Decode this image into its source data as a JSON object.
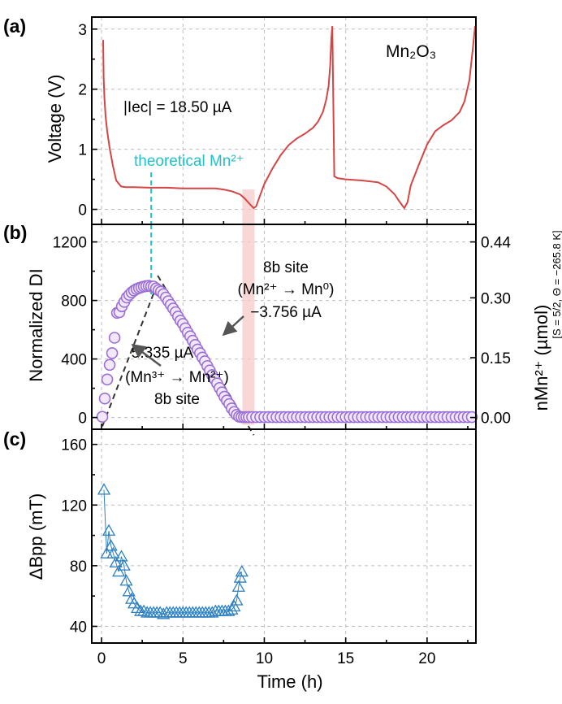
{
  "colors": {
    "voltage_line": "#d64545",
    "di_marker": "#9b6fd6",
    "di_marker_fill": "#f1e9fb",
    "dbpp_marker": "#2d7fc1",
    "theoretical_line": "#1fc3c9",
    "band": "#f7c9c9",
    "fit_line": "#333333",
    "arrow": "#555555"
  },
  "chart_data": [
    {
      "panel_label": "(a)",
      "type": "line",
      "ylabel": "Voltage (V)",
      "ylim": [
        -0.25,
        3.2
      ],
      "yticks": [
        "0",
        "1",
        "2",
        "3"
      ],
      "xlim": [
        -0.6,
        23
      ],
      "grid": true,
      "compound": "Mn₂O₃",
      "current_label": "|Iec| = 18.50 µA",
      "theoretical_label": "theoretical Mn²⁺",
      "theoretical_x": 3.05,
      "band_x": [
        8.65,
        9.4
      ],
      "series": [
        {
          "x": [
            0.1,
            0.13,
            0.18,
            0.25,
            0.35,
            0.5,
            0.7,
            0.9,
            1.2,
            1.5,
            2,
            3,
            4,
            5,
            6,
            7,
            7.5,
            8,
            8.5,
            8.8,
            9.0,
            9.2,
            9.35,
            9.5,
            9.7,
            10,
            10.5,
            11,
            11.5,
            12,
            12.5,
            13,
            13.3,
            13.6,
            13.8,
            13.95,
            14.05,
            14.12,
            14.18,
            14.22,
            14.3,
            14.5,
            15,
            16,
            17,
            17.5,
            18,
            18.3,
            18.6,
            18.8,
            19,
            19.5,
            20,
            20.5,
            21,
            21.5,
            22,
            22.3,
            22.6,
            22.8,
            22.95
          ],
          "y": [
            2.82,
            2.2,
            1.85,
            1.55,
            1.3,
            1.02,
            0.72,
            0.48,
            0.38,
            0.37,
            0.37,
            0.36,
            0.36,
            0.35,
            0.35,
            0.35,
            0.33,
            0.3,
            0.25,
            0.18,
            0.12,
            0.06,
            0.02,
            0.05,
            0.2,
            0.42,
            0.68,
            0.9,
            1.07,
            1.18,
            1.26,
            1.36,
            1.46,
            1.62,
            1.82,
            2.05,
            2.4,
            2.85,
            3.05,
            2.2,
            0.55,
            0.52,
            0.5,
            0.48,
            0.45,
            0.38,
            0.25,
            0.13,
            0.02,
            0.12,
            0.4,
            0.75,
            1.08,
            1.3,
            1.4,
            1.48,
            1.62,
            1.8,
            2.15,
            2.65,
            3.05
          ]
        }
      ]
    },
    {
      "panel_label": "(b)",
      "type": "scatter",
      "ylabel": "Normalized DI",
      "ylim": [
        -80,
        1320
      ],
      "yticks": [
        "0",
        "400",
        "800",
        "1200"
      ],
      "y2label": "nMn²⁺ (µmol)",
      "y2label_sub": "[S = 5/2, Θ = −265.8 K]",
      "y2ticks": [
        "0.00",
        "0.15",
        "0.30",
        "0.44"
      ],
      "y2tick_positions": [
        0,
        409,
        818,
        1200
      ],
      "xlim": [
        -0.6,
        23
      ],
      "grid": true,
      "annotations": {
        "up_rate": "5.335 µA",
        "up_reaction": "(Mn³⁺ → Mn²⁺)",
        "up_site": "8b site",
        "down_site": "8b site",
        "down_reaction": "(Mn²⁺ → Mn⁰)",
        "down_rate": "−3.756 µA"
      },
      "fit_lines": [
        {
          "x": [
            0.05,
            3.45
          ],
          "y": [
            -60,
            920
          ]
        },
        {
          "x": [
            3.45,
            9.35
          ],
          "y": [
            970,
            -120
          ]
        }
      ],
      "x": [
        0.05,
        0.2,
        0.35,
        0.5,
        0.65,
        0.8,
        0.95,
        1.1,
        1.25,
        1.4,
        1.55,
        1.7,
        1.85,
        2.0,
        2.15,
        2.3,
        2.45,
        2.6,
        2.75,
        2.9,
        3.05,
        3.2,
        3.35,
        3.5,
        3.65,
        3.8,
        3.95,
        4.1,
        4.25,
        4.4,
        4.55,
        4.7,
        4.85,
        5.0,
        5.15,
        5.3,
        5.45,
        5.6,
        5.75,
        5.9,
        6.05,
        6.2,
        6.35,
        6.5,
        6.65,
        6.8,
        6.95,
        7.1,
        7.25,
        7.4,
        7.55,
        7.7,
        7.85,
        8.0,
        8.15,
        8.3,
        8.45,
        8.6,
        8.75,
        8.9,
        9.05,
        9.25,
        9.5,
        9.75,
        10.0,
        10.25,
        10.5,
        10.75,
        11.0,
        11.25,
        11.5,
        11.75,
        12.0,
        12.25,
        12.5,
        12.75,
        13.0,
        13.25,
        13.5,
        13.75,
        14.0,
        14.25,
        14.5,
        14.75,
        15.0,
        15.25,
        15.5,
        15.75,
        16.0,
        16.25,
        16.5,
        16.75,
        17.0,
        17.25,
        17.5,
        17.75,
        18.0,
        18.25,
        18.5,
        18.75,
        19.0,
        19.25,
        19.5,
        19.75,
        20.0,
        20.25,
        20.5,
        20.75,
        21.0,
        21.25,
        21.5,
        21.75,
        22.0,
        22.25,
        22.5,
        22.75
      ],
      "values": [
        5,
        130,
        260,
        360,
        440,
        545,
        715,
        720,
        760,
        790,
        820,
        838,
        855,
        868,
        878,
        885,
        890,
        895,
        898,
        900,
        896,
        895,
        882,
        870,
        860,
        843,
        820,
        795,
        770,
        745,
        720,
        690,
        662,
        640,
        610,
        580,
        555,
        525,
        496,
        465,
        440,
        410,
        384,
        352,
        322,
        290,
        262,
        233,
        202,
        172,
        142,
        116,
        92,
        62,
        38,
        18,
        6,
        3,
        3,
        3,
        3,
        3,
        3,
        3,
        3,
        3,
        3,
        3,
        3,
        3,
        3,
        3,
        3,
        3,
        3,
        3,
        3,
        3,
        3,
        3,
        3,
        3,
        3,
        3,
        3,
        3,
        3,
        3,
        3,
        3,
        3,
        3,
        3,
        3,
        3,
        3,
        3,
        3,
        3,
        3,
        3,
        3,
        3,
        3,
        3,
        3,
        3,
        3,
        3,
        3,
        3,
        3,
        3,
        3,
        3,
        3
      ]
    },
    {
      "panel_label": "(c)",
      "type": "scatter",
      "ylabel": "ΔBpp (mT)",
      "ylim": [
        29,
        170
      ],
      "yticks": [
        "40",
        "80",
        "120",
        "160"
      ],
      "xlim": [
        -0.6,
        23
      ],
      "xticks": [
        "0",
        "5",
        "10",
        "15",
        "20"
      ],
      "xlabel": "Time (h)",
      "grid": true,
      "x": [
        0.15,
        0.32,
        0.45,
        0.58,
        0.72,
        0.88,
        1.05,
        1.22,
        1.38,
        1.52,
        1.68,
        1.85,
        2.0,
        2.2,
        2.4,
        2.6,
        2.8,
        3.0,
        3.2,
        3.4,
        3.6,
        3.8,
        4.0,
        4.2,
        4.4,
        4.6,
        4.8,
        5.0,
        5.2,
        5.4,
        5.6,
        5.8,
        6.0,
        6.2,
        6.4,
        6.6,
        6.8,
        7.0,
        7.2,
        7.4,
        7.6,
        7.8,
        8.0,
        8.15,
        8.3,
        8.42,
        8.52,
        8.62
      ],
      "values": [
        130,
        88,
        103,
        93,
        88,
        82,
        76,
        86,
        80,
        70,
        63,
        58,
        55,
        52,
        50,
        50,
        49,
        49,
        49,
        49,
        49,
        48,
        49,
        49,
        49,
        49,
        49,
        49,
        49,
        49,
        49,
        49,
        49,
        49,
        49,
        49,
        49,
        50,
        50,
        50,
        50,
        50,
        51,
        53,
        57,
        66,
        72,
        76
      ]
    }
  ]
}
